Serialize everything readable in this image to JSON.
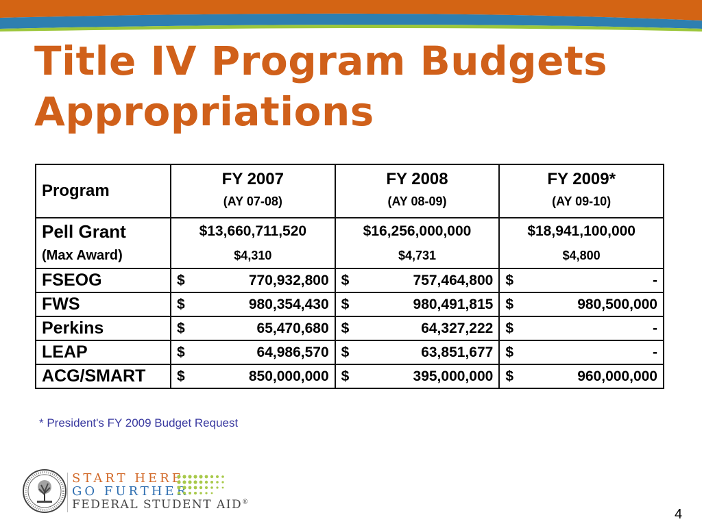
{
  "slide": {
    "title_line1": "Title IV Program Budgets",
    "title_line2": "Appropriations",
    "page_number": "4",
    "accent_color": "#d0601a"
  },
  "table": {
    "program_header": "Program",
    "columns": [
      {
        "fy": "FY 2007",
        "ay": "(AY 07-08)"
      },
      {
        "fy": "FY 2008",
        "ay": "(AY 08-09)"
      },
      {
        "fy": "FY 2009*",
        "ay": "(AY 09-10)"
      }
    ],
    "pell": {
      "name": "Pell Grant",
      "sub": "(Max Award)",
      "values": [
        "$13,660,711,520",
        "$16,256,000,000",
        "$18,941,100,000"
      ],
      "max_awards": [
        "$4,310",
        "$4,731",
        "$4,800"
      ]
    },
    "rows": [
      {
        "name": "FSEOG",
        "values": [
          "770,932,800",
          "757,464,800",
          "-"
        ]
      },
      {
        "name": "FWS",
        "values": [
          "980,354,430",
          "980,491,815",
          "980,500,000"
        ]
      },
      {
        "name": "Perkins",
        "values": [
          "65,470,680",
          "64,327,222",
          "-"
        ]
      },
      {
        "name": "LEAP",
        "values": [
          "64,986,570",
          "63,851,677",
          "-"
        ]
      },
      {
        "name": "ACG/SMART",
        "values": [
          "850,000,000",
          "395,000,000",
          "960,000,000"
        ]
      }
    ],
    "currency": "$"
  },
  "footnote": "* President's FY 2009 Budget Request",
  "logo": {
    "line1": "START HERE",
    "line2": "GO FURTHER",
    "line3": "FEDERAL STUDENT AID",
    "registered": "®"
  }
}
